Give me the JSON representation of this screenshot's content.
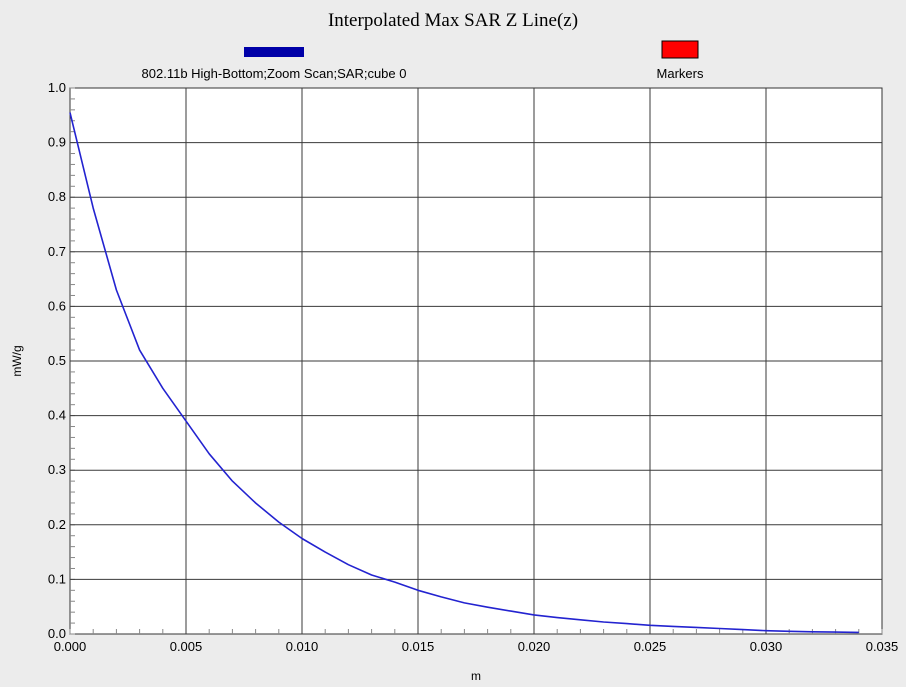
{
  "colors": {
    "background": "#ececec",
    "plot_background": "#ffffff",
    "grid": "#3a3a3a",
    "series": "#2323d0",
    "legend_series_swatch": "#0000a8",
    "legend_markers_swatch": "#ff0000"
  },
  "chart_data": {
    "type": "line",
    "title": "Interpolated Max SAR Z Line(z)",
    "xlabel": "m",
    "ylabel": "mW/g",
    "xlim": [
      0,
      0.035
    ],
    "ylim": [
      0,
      1.0
    ],
    "grid": true,
    "legend_position": "top",
    "legend": [
      {
        "label": "802.11b High-Bottom;Zoom Scan;SAR;cube 0",
        "color": "#0000a8"
      },
      {
        "label": "Markers",
        "color": "#ff0000"
      }
    ],
    "x_ticks": [
      "0.000",
      "0.005",
      "0.010",
      "0.015",
      "0.020",
      "0.025",
      "0.030",
      "0.035"
    ],
    "y_ticks": [
      "0.0",
      "0.1",
      "0.2",
      "0.3",
      "0.4",
      "0.5",
      "0.6",
      "0.7",
      "0.8",
      "0.9",
      "1.0"
    ],
    "series": [
      {
        "name": "802.11b High-Bottom;Zoom Scan;SAR;cube 0",
        "x": [
          0.0,
          0.001,
          0.002,
          0.003,
          0.004,
          0.005,
          0.006,
          0.007,
          0.008,
          0.009,
          0.01,
          0.011,
          0.012,
          0.013,
          0.014,
          0.015,
          0.016,
          0.017,
          0.018,
          0.019,
          0.02,
          0.021,
          0.022,
          0.023,
          0.024,
          0.025,
          0.026,
          0.027,
          0.028,
          0.029,
          0.03,
          0.031,
          0.032,
          0.033,
          0.034
        ],
        "y": [
          0.955,
          0.78,
          0.63,
          0.52,
          0.45,
          0.39,
          0.33,
          0.28,
          0.24,
          0.205,
          0.175,
          0.15,
          0.127,
          0.108,
          0.095,
          0.08,
          0.068,
          0.057,
          0.049,
          0.042,
          0.035,
          0.03,
          0.026,
          0.022,
          0.019,
          0.016,
          0.014,
          0.012,
          0.01,
          0.008,
          0.006,
          0.005,
          0.004,
          0.0035,
          0.003
        ]
      }
    ]
  }
}
